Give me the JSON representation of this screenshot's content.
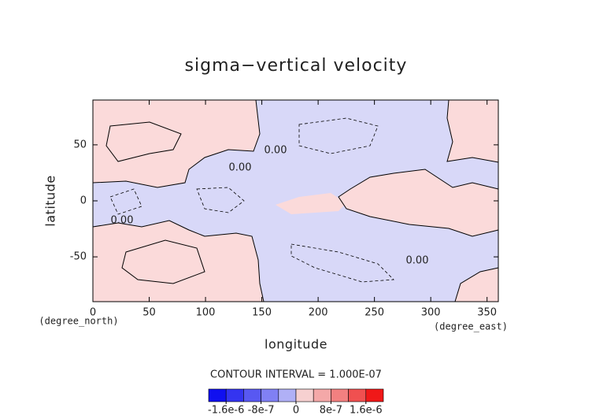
{
  "chart_data": {
    "type": "contour",
    "title": "sigma−vertical velocity",
    "xlabel": "longitude",
    "ylabel": "latitude",
    "xunit": "(degree_east)",
    "yunit": "(degree_north)",
    "xlim": [
      0,
      360
    ],
    "ylim": [
      -90,
      90
    ],
    "xticks": [
      0,
      50,
      100,
      150,
      200,
      250,
      300,
      350
    ],
    "yticks": [
      -50,
      0,
      50
    ],
    "contour_interval": "CONTOUR INTERVAL = 1.000E-07",
    "contour_labels": [
      "0.00",
      "0.00",
      "0.00",
      "0.00"
    ],
    "colorbar": {
      "clim": [
        -2e-06,
        2e-06
      ],
      "colors": [
        "#1010f0",
        "#3434f0",
        "#5858f2",
        "#8080f4",
        "#b0b0f6",
        "#f6d0d0",
        "#f4a8a8",
        "#f28080",
        "#f05050",
        "#f01818"
      ],
      "ticks": [
        {
          "value": -1.6e-06,
          "label": "-1.6e-6"
        },
        {
          "value": -8e-07,
          "label": "-8e-7"
        },
        0,
        {
          "value": 8e-07,
          "label": "8e-7"
        },
        {
          "value": 1.6e-06,
          "label": "1.6e-6"
        }
      ]
    }
  }
}
